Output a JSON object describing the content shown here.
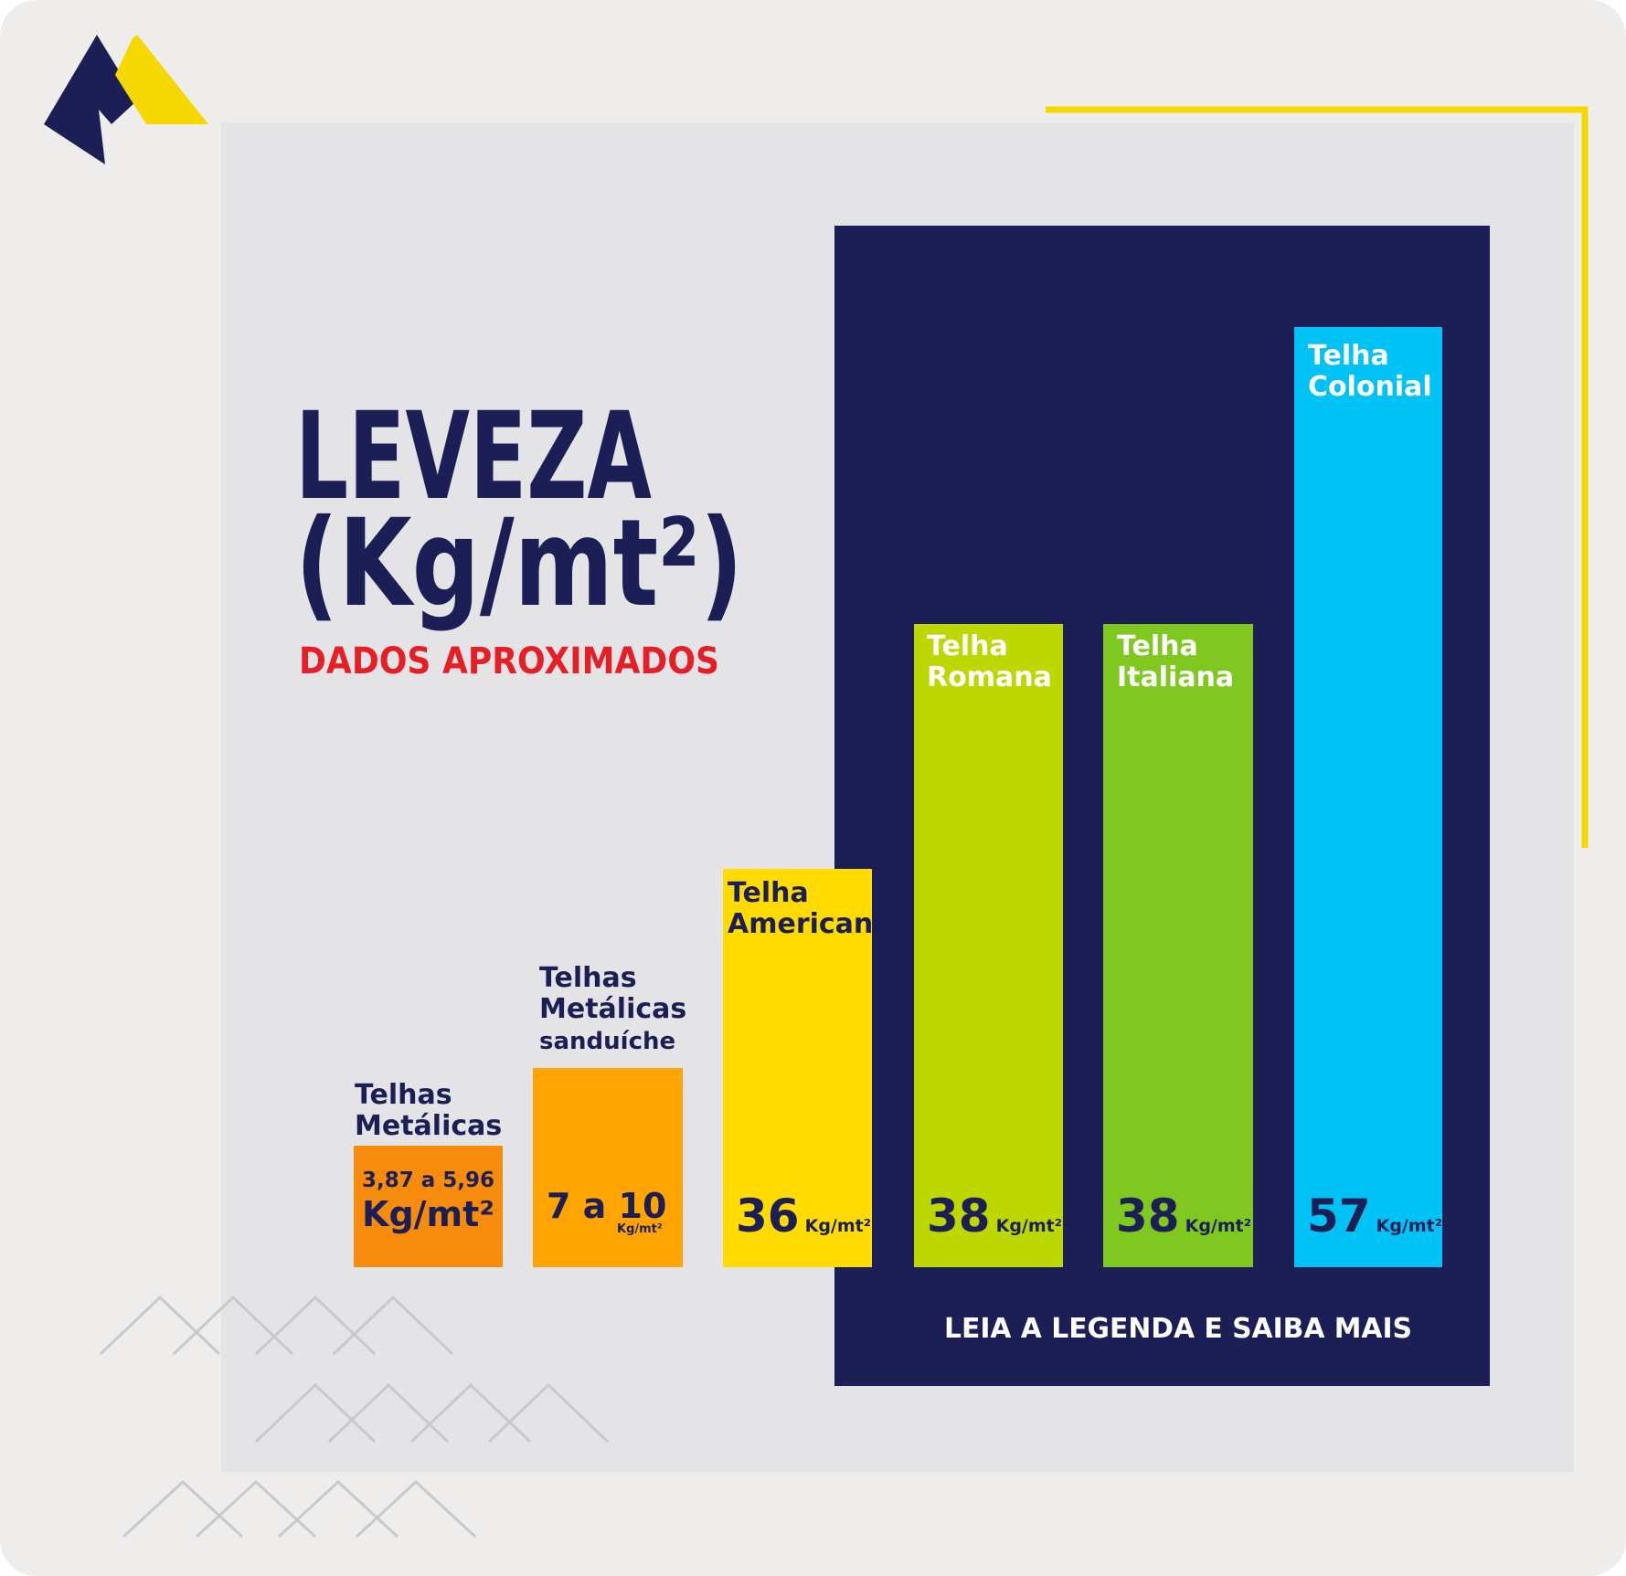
{
  "title": "LEVEZA",
  "unit_title": "(Kg/mt²)",
  "subtitle": "DADOS APROXIMADOS",
  "footer": "LEIA A LEGENDA E SAIBA MAIS",
  "items": [
    {
      "name": [
        "Telhas",
        "Metálicas"
      ],
      "value": "3,87 a 5,96",
      "unit": "Kg/mt²"
    },
    {
      "name": [
        "Telhas",
        "Metálicas"
      ],
      "note": "sanduíche",
      "value": "7 a 10",
      "unit": "Kg/mt²"
    },
    {
      "name": [
        "Telha",
        "Americana"
      ],
      "value": "36",
      "unit": "Kg/mt²"
    },
    {
      "name": [
        "Telha",
        "Romana"
      ],
      "value": "38",
      "unit": "Kg/mt²"
    },
    {
      "name": [
        "Telha",
        "Italiana"
      ],
      "value": "38",
      "unit": "Kg/mt²"
    },
    {
      "name": [
        "Telha",
        "Colonial"
      ],
      "value": "57",
      "unit": "Kg/mt²"
    }
  ]
}
